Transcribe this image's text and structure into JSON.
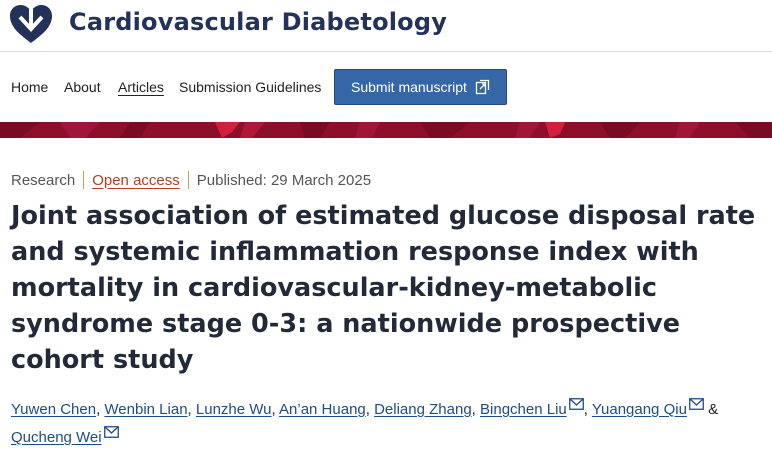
{
  "header": {
    "journal_title": "Cardiovascular Diabetology",
    "logo_icon": "heart-logo-icon",
    "brand_color": "#23325a"
  },
  "nav": {
    "items": [
      {
        "label": "Home"
      },
      {
        "label": "About"
      },
      {
        "label": "Articles",
        "active": true
      },
      {
        "label": "Submission Guidelines"
      }
    ],
    "submit_label": "Submit manuscript",
    "submit_icon": "external-link-icon",
    "submit_color": "#3566a8"
  },
  "banner": {
    "color": "#8c0f2c",
    "accent": "#d21f3c"
  },
  "article": {
    "type": "Research",
    "access": "Open access",
    "published": "Published: 29 March 2025",
    "title": "Joint association of estimated glucose disposal rate and systemic inflammation response index with mortality in cardiovascular-kidney-metabolic syndrome stage 0-3: a nationwide prospective cohort study",
    "authors": [
      {
        "name": "Yuwen Chen",
        "corresponding": false
      },
      {
        "name": "Wenbin Lian",
        "corresponding": false
      },
      {
        "name": "Lunzhe Wu",
        "corresponding": false
      },
      {
        "name": "An’an Huang",
        "corresponding": false
      },
      {
        "name": "Deliang Zhang",
        "corresponding": false
      },
      {
        "name": "Bingchen Liu",
        "corresponding": true
      },
      {
        "name": "Yuangang Qiu",
        "corresponding": true
      },
      {
        "name": "Qucheng Wei",
        "corresponding": true
      }
    ],
    "link_color": "#1e4b8a"
  }
}
